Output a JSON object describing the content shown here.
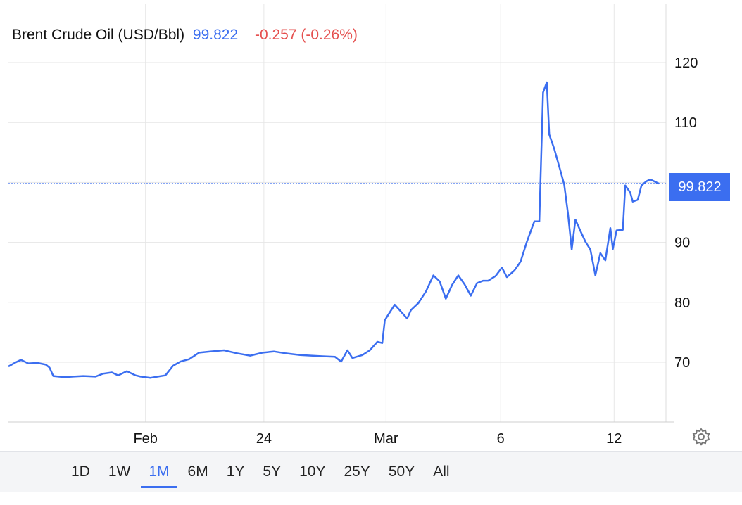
{
  "header": {
    "title": "Brent Crude Oil (USD/Bbl)",
    "price": "99.822",
    "change": "-0.257 (-0.26%)"
  },
  "price_tag": "99.822",
  "ranges": [
    {
      "label": "1D",
      "active": false
    },
    {
      "label": "1W",
      "active": false
    },
    {
      "label": "1M",
      "active": true
    },
    {
      "label": "6M",
      "active": false
    },
    {
      "label": "1Y",
      "active": false
    },
    {
      "label": "5Y",
      "active": false
    },
    {
      "label": "10Y",
      "active": false
    },
    {
      "label": "25Y",
      "active": false
    },
    {
      "label": "50Y",
      "active": false
    },
    {
      "label": "All",
      "active": false
    }
  ],
  "icons": {
    "settings": "gear-icon"
  },
  "colors": {
    "line": "#3b6ef0",
    "change": "#e5504f",
    "grid": "#e6e6e6"
  },
  "chart_data": {
    "type": "line",
    "title": "Brent Crude Oil (USD/Bbl)",
    "xlabel": "",
    "ylabel": "",
    "ylim": [
      60,
      130
    ],
    "yticks": [
      70,
      80,
      90,
      100,
      110,
      120
    ],
    "ytick_labels": [
      "70",
      "80",
      "90",
      "",
      "110",
      "120"
    ],
    "xticks": [
      {
        "label": "Feb",
        "x": 19.0
      },
      {
        "label": "24",
        "x": 28.5
      },
      {
        "label": "Mar",
        "x": 38.3
      },
      {
        "label": "6",
        "x": 47.5
      },
      {
        "label": "12",
        "x": 56.6
      }
    ],
    "xlim": [
      8.0,
      60.2
    ],
    "grid": true,
    "last_value": 99.822,
    "series": [
      {
        "values": [
          [
            8.0,
            69.3
          ],
          [
            8.5,
            69.9
          ],
          [
            9.0,
            70.4
          ],
          [
            9.6,
            69.8
          ],
          [
            10.3,
            69.9
          ],
          [
            11.0,
            69.6
          ],
          [
            11.3,
            69.1
          ],
          [
            11.6,
            67.7
          ],
          [
            12.5,
            67.5
          ],
          [
            13.2,
            67.6
          ],
          [
            14.0,
            67.7
          ],
          [
            15.0,
            67.6
          ],
          [
            15.6,
            68.1
          ],
          [
            16.3,
            68.3
          ],
          [
            16.8,
            67.8
          ],
          [
            17.5,
            68.5
          ],
          [
            18.2,
            67.8
          ],
          [
            18.6,
            67.6
          ],
          [
            19.4,
            67.4
          ],
          [
            20.0,
            67.6
          ],
          [
            20.6,
            67.8
          ],
          [
            21.2,
            69.4
          ],
          [
            21.8,
            70.1
          ],
          [
            22.5,
            70.5
          ],
          [
            23.3,
            71.6
          ],
          [
            24.2,
            71.8
          ],
          [
            25.3,
            72.0
          ],
          [
            26.3,
            71.5
          ],
          [
            27.4,
            71.1
          ],
          [
            28.4,
            71.6
          ],
          [
            29.3,
            71.8
          ],
          [
            30.2,
            71.5
          ],
          [
            31.4,
            71.2
          ],
          [
            32.3,
            71.1
          ],
          [
            33.2,
            71.0
          ],
          [
            34.2,
            70.9
          ],
          [
            34.7,
            70.1
          ],
          [
            35.2,
            72.0
          ],
          [
            35.6,
            70.7
          ],
          [
            36.4,
            71.2
          ],
          [
            37.0,
            72.0
          ],
          [
            37.6,
            73.4
          ],
          [
            38.0,
            73.2
          ],
          [
            38.2,
            77.0
          ],
          [
            38.5,
            78.0
          ],
          [
            39.0,
            79.6
          ],
          [
            39.6,
            78.2
          ],
          [
            40.0,
            77.3
          ],
          [
            40.3,
            78.7
          ],
          [
            40.9,
            79.9
          ],
          [
            41.5,
            81.8
          ],
          [
            42.1,
            84.5
          ],
          [
            42.6,
            83.5
          ],
          [
            43.1,
            80.6
          ],
          [
            43.6,
            82.9
          ],
          [
            44.1,
            84.5
          ],
          [
            44.6,
            83.0
          ],
          [
            45.1,
            81.1
          ],
          [
            45.6,
            83.2
          ],
          [
            46.1,
            83.6
          ],
          [
            46.5,
            83.6
          ],
          [
            47.1,
            84.4
          ],
          [
            47.6,
            85.8
          ],
          [
            48.0,
            84.2
          ],
          [
            48.6,
            85.3
          ],
          [
            49.1,
            86.8
          ],
          [
            49.6,
            90.1
          ],
          [
            50.2,
            93.5
          ],
          [
            50.6,
            93.5
          ],
          [
            50.9,
            115.0
          ],
          [
            51.2,
            116.7
          ],
          [
            51.4,
            108.0
          ],
          [
            51.8,
            105.6
          ],
          [
            52.3,
            101.9
          ],
          [
            52.6,
            99.6
          ],
          [
            52.9,
            94.8
          ],
          [
            53.2,
            88.8
          ],
          [
            53.5,
            93.8
          ],
          [
            53.9,
            91.9
          ],
          [
            54.3,
            90.1
          ],
          [
            54.7,
            88.8
          ],
          [
            55.1,
            84.5
          ],
          [
            55.5,
            88.2
          ],
          [
            55.9,
            87.0
          ],
          [
            56.3,
            92.4
          ],
          [
            56.5,
            88.9
          ],
          [
            56.8,
            92.0
          ],
          [
            57.3,
            92.1
          ],
          [
            57.5,
            99.5
          ],
          [
            57.9,
            98.3
          ],
          [
            58.1,
            96.8
          ],
          [
            58.5,
            97.1
          ],
          [
            58.8,
            99.5
          ],
          [
            59.2,
            100.2
          ],
          [
            59.5,
            100.5
          ],
          [
            59.9,
            100.1
          ],
          [
            60.2,
            99.8
          ]
        ]
      }
    ]
  }
}
